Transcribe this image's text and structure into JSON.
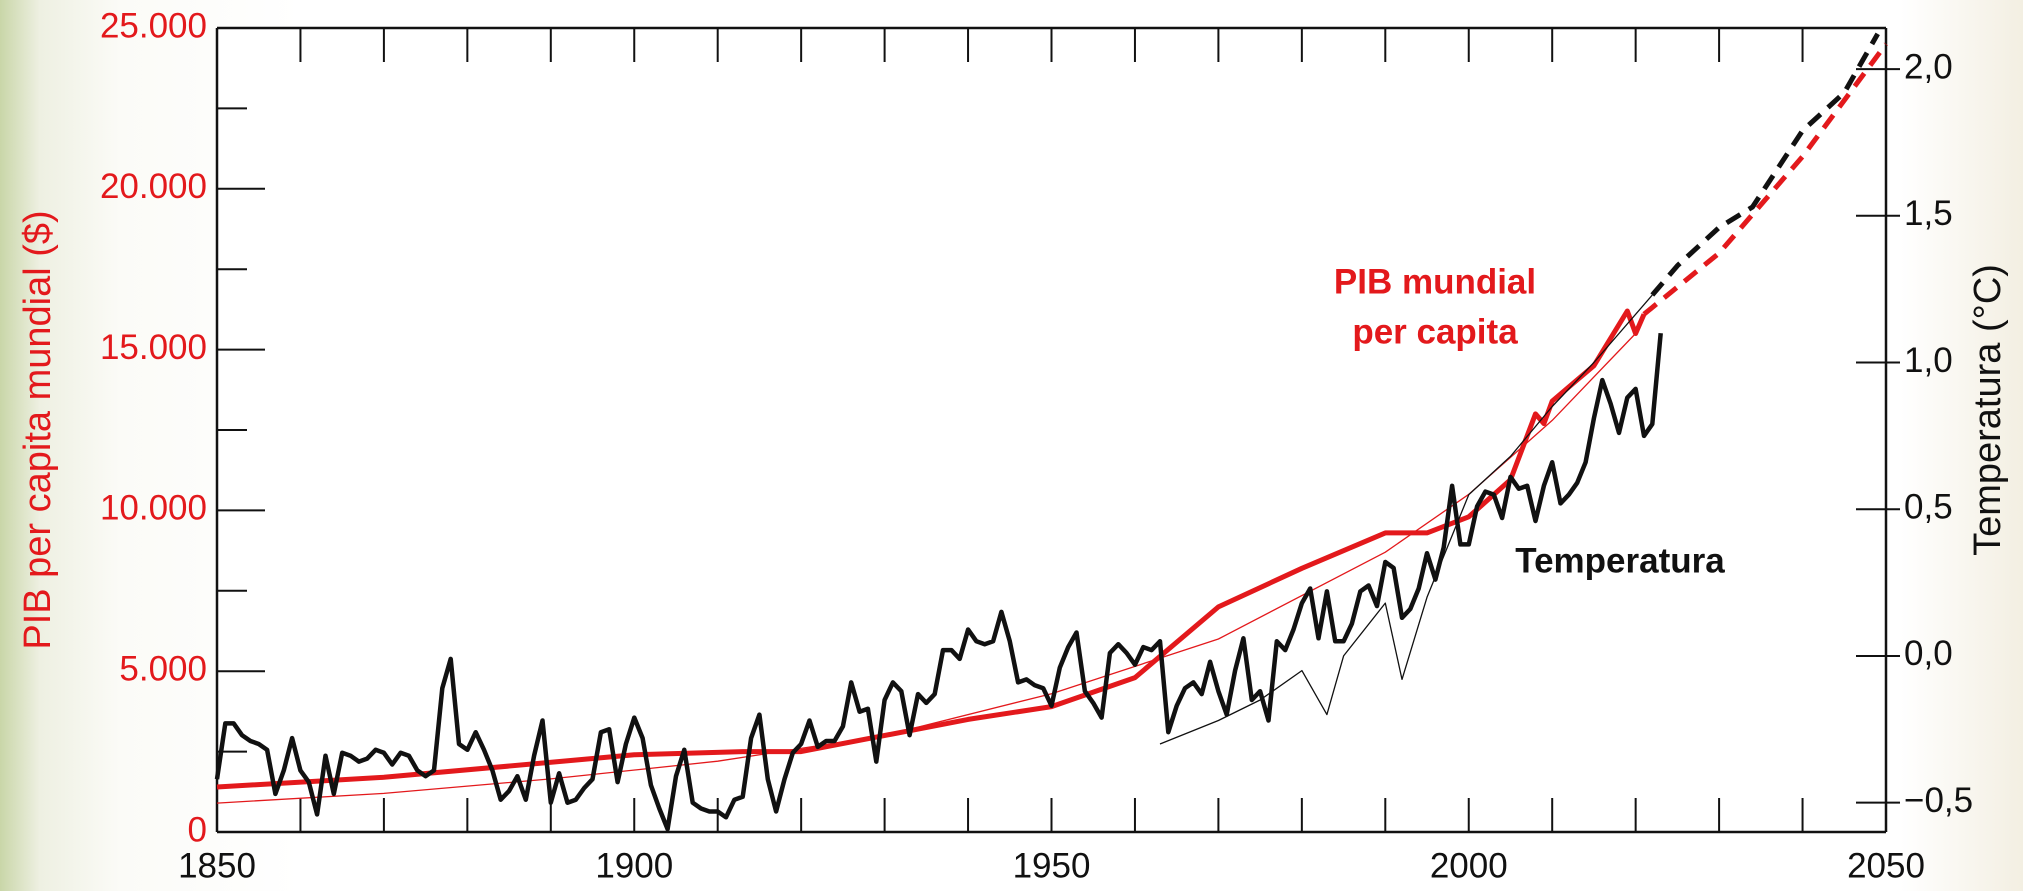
{
  "chart_data": {
    "type": "line",
    "ylabel": "PIB per capita mundial ($)",
    "y2label": "Temperatura (°C)",
    "xlim": [
      1850,
      2050
    ],
    "xticks": [
      1850,
      1900,
      1950,
      2000,
      2050
    ],
    "xminorticks": [
      1860,
      1870,
      1880,
      1890,
      1910,
      1920,
      1930,
      1940,
      1960,
      1970,
      1980,
      1990,
      2010,
      2020,
      2030,
      2040
    ],
    "ylim": [
      0,
      25000
    ],
    "yticks": [
      0,
      {
        "value": 5000,
        "label": "5.000"
      },
      {
        "value": 10000,
        "label": "10.000"
      },
      {
        "value": 15000,
        "label": "15.000"
      },
      {
        "value": 20000,
        "label": "20.000"
      },
      {
        "value": 25000,
        "label": "25.000"
      }
    ],
    "yminorticks": [
      2500,
      7500,
      12500,
      17500,
      22500
    ],
    "y2lim": [
      -0.6,
      2.14
    ],
    "y2ticks": [
      {
        "value": -0.5,
        "label": "−0,5"
      },
      {
        "value": 0,
        "label": "0,0"
      },
      {
        "value": 0.5,
        "label": "0,5"
      },
      {
        "value": 1,
        "label": "1,0"
      },
      {
        "value": 1.5,
        "label": "1,5"
      },
      {
        "value": 2,
        "label": "2,0"
      }
    ],
    "axis_color": "#e3191c",
    "y2_axis_color": "#111111",
    "series": [
      {
        "color": "#e3191c",
        "linewidth": 1.3,
        "dashed": false,
        "x": [
          1850,
          1870,
          1890,
          1910,
          1930,
          1950,
          1970,
          1990,
          2000,
          2010,
          2020
        ],
        "values": [
          900,
          1200,
          1650,
          2200,
          3000,
          4300,
          6000,
          8700,
          10500,
          12800,
          15500
        ]
      },
      {
        "color": "#e3191c",
        "linewidth": 5,
        "dashed": false,
        "x": [
          1850,
          1870,
          1900,
          1913,
          1920,
          1940,
          1950,
          1960,
          1970,
          1980,
          1990,
          1995,
          2000,
          2005,
          2008,
          2009,
          2010,
          2015,
          2019,
          2020,
          2021
        ],
        "values": [
          1400,
          1700,
          2400,
          2500,
          2500,
          3500,
          3900,
          4800,
          7000,
          8200,
          9300,
          9300,
          9800,
          10950,
          13000,
          12700,
          13400,
          14500,
          16200,
          15500,
          16100
        ]
      },
      {
        "color": "#e3191c",
        "linewidth": 5,
        "dashed": true,
        "x": [
          2021,
          2030,
          2040,
          2050
        ],
        "values": [
          16100,
          18000,
          21000,
          24500
        ]
      },
      {
        "color": "#111111",
        "linewidth": 1.3,
        "dashed": false,
        "axis": "y2",
        "x": [
          1963,
          1970,
          1975,
          1980,
          1983,
          1985,
          1990,
          1992,
          1995,
          2000,
          2005,
          2010,
          2015,
          2022
        ],
        "values": [
          -0.3,
          -0.22,
          -0.15,
          -0.05,
          -0.2,
          0.0,
          0.18,
          -0.08,
          0.2,
          0.55,
          0.68,
          0.85,
          1.0,
          1.23
        ]
      },
      {
        "color": "#111111",
        "linewidth": 5,
        "dashed": true,
        "axis": "y2",
        "x": [
          2022,
          2025,
          2030,
          2034,
          2040,
          2045,
          2049
        ],
        "values": [
          1.23,
          1.33,
          1.46,
          1.53,
          1.79,
          1.92,
          2.12
        ]
      },
      {
        "color": "#111111",
        "linewidth": 4.5,
        "dashed": false,
        "axis": "y2",
        "x": [
          1850,
          1851,
          1852,
          1853,
          1854,
          1855,
          1856,
          1857,
          1858,
          1859,
          1860,
          1861,
          1862,
          1863,
          1864,
          1865,
          1866,
          1867,
          1868,
          1869,
          1870,
          1871,
          1872,
          1873,
          1874,
          1875,
          1876,
          1877,
          1878,
          1879,
          1880,
          1881,
          1882,
          1883,
          1884,
          1885,
          1886,
          1887,
          1888,
          1889,
          1890,
          1891,
          1892,
          1893,
          1894,
          1895,
          1896,
          1897,
          1898,
          1899,
          1900,
          1901,
          1902,
          1903,
          1904,
          1905,
          1906,
          1907,
          1908,
          1909,
          1910,
          1911,
          1912,
          1913,
          1914,
          1915,
          1916,
          1917,
          1918,
          1919,
          1920,
          1921,
          1922,
          1923,
          1924,
          1925,
          1926,
          1927,
          1928,
          1929,
          1930,
          1931,
          1932,
          1933,
          1934,
          1935,
          1936,
          1937,
          1938,
          1939,
          1940,
          1941,
          1942,
          1943,
          1944,
          1945,
          1946,
          1947,
          1948,
          1949,
          1950,
          1951,
          1952,
          1953,
          1954,
          1955,
          1956,
          1957,
          1958,
          1959,
          1960,
          1961,
          1962,
          1963,
          1964,
          1965,
          1966,
          1967,
          1968,
          1969,
          1970,
          1971,
          1972,
          1973,
          1974,
          1975,
          1976,
          1977,
          1978,
          1979,
          1980,
          1981,
          1982,
          1983,
          1984,
          1985,
          1986,
          1987,
          1988,
          1989,
          1990,
          1991,
          1992,
          1993,
          1994,
          1995,
          1996,
          1997,
          1998,
          1999,
          2000,
          2001,
          2002,
          2003,
          2004,
          2005,
          2006,
          2007,
          2008,
          2009,
          2010,
          2011,
          2012,
          2013,
          2014,
          2015,
          2016,
          2017,
          2018,
          2019,
          2020,
          2021,
          2022,
          2023
        ],
        "values": [
          -0.42,
          -0.23,
          -0.23,
          -0.27,
          -0.29,
          -0.3,
          -0.32,
          -0.47,
          -0.39,
          -0.28,
          -0.39,
          -0.43,
          -0.54,
          -0.34,
          -0.47,
          -0.33,
          -0.34,
          -0.36,
          -0.35,
          -0.32,
          -0.33,
          -0.37,
          -0.33,
          -0.34,
          -0.39,
          -0.41,
          -0.39,
          -0.11,
          -0.01,
          -0.3,
          -0.32,
          -0.26,
          -0.32,
          -0.39,
          -0.49,
          -0.46,
          -0.41,
          -0.49,
          -0.34,
          -0.22,
          -0.5,
          -0.4,
          -0.5,
          -0.49,
          -0.45,
          -0.42,
          -0.26,
          -0.25,
          -0.43,
          -0.3,
          -0.21,
          -0.28,
          -0.44,
          -0.52,
          -0.59,
          -0.41,
          -0.32,
          -0.5,
          -0.52,
          -0.53,
          -0.53,
          -0.55,
          -0.49,
          -0.48,
          -0.28,
          -0.2,
          -0.42,
          -0.53,
          -0.42,
          -0.33,
          -0.3,
          -0.22,
          -0.31,
          -0.29,
          -0.29,
          -0.24,
          -0.09,
          -0.19,
          -0.18,
          -0.36,
          -0.15,
          -0.09,
          -0.12,
          -0.27,
          -0.13,
          -0.16,
          -0.13,
          0.02,
          0.02,
          -0.01,
          0.09,
          0.05,
          0.04,
          0.05,
          0.15,
          0.05,
          -0.09,
          -0.08,
          -0.1,
          -0.11,
          -0.17,
          -0.04,
          0.03,
          0.08,
          -0.12,
          -0.16,
          -0.21,
          0.01,
          0.04,
          0.01,
          -0.03,
          0.03,
          0.02,
          0.05,
          -0.26,
          -0.17,
          -0.11,
          -0.09,
          -0.13,
          -0.02,
          -0.12,
          -0.2,
          -0.05,
          0.06,
          -0.15,
          -0.12,
          -0.22,
          0.05,
          0.02,
          0.09,
          0.18,
          0.23,
          0.06,
          0.22,
          0.05,
          0.05,
          0.11,
          0.22,
          0.24,
          0.17,
          0.32,
          0.3,
          0.13,
          0.16,
          0.23,
          0.35,
          0.26,
          0.37,
          0.58,
          0.38,
          0.38,
          0.51,
          0.56,
          0.55,
          0.47,
          0.61,
          0.57,
          0.58,
          0.46,
          0.58,
          0.66,
          0.52,
          0.55,
          0.59,
          0.66,
          0.81,
          0.94,
          0.86,
          0.76,
          0.88,
          0.91,
          0.75,
          0.79,
          1.1
        ]
      }
    ],
    "annotations": [
      {
        "text": "PIB mundial",
        "color": "#e3191c"
      },
      {
        "text": "per capita",
        "color": "#e3191c"
      },
      {
        "text": "Temperatura",
        "color": "#111111"
      }
    ]
  }
}
